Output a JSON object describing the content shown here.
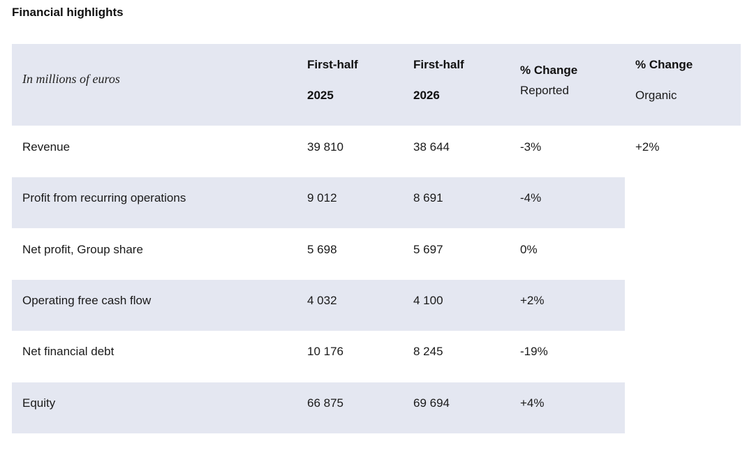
{
  "title": "Financial highlights",
  "table": {
    "unit_label": "In millions of euros",
    "columns": [
      {
        "line1": "First-half",
        "line2": "2025"
      },
      {
        "line1": "First-half",
        "line2": "2026"
      },
      {
        "line1": "% Change",
        "line2": "Reported"
      },
      {
        "line1": "% Change",
        "line2": "Organic"
      }
    ],
    "rows": [
      {
        "label": "Revenue",
        "h1_2025": "39 810",
        "h1_2026": "38 644",
        "change_reported": "-3%",
        "change_organic": "+2%"
      },
      {
        "label": "Profit from recurring operations",
        "h1_2025": "9 012",
        "h1_2026": "8 691",
        "change_reported": "-4%",
        "change_organic": ""
      },
      {
        "label": "Net profit, Group share",
        "h1_2025": "5 698",
        "h1_2026": "5 697",
        "change_reported": "0%",
        "change_organic": ""
      },
      {
        "label": "Operating free cash flow",
        "h1_2025": "4 032",
        "h1_2026": "4 100",
        "change_reported": "+2%",
        "change_organic": ""
      },
      {
        "label": "Net financial debt",
        "h1_2025": "10 176",
        "h1_2026": "8 245",
        "change_reported": "-19%",
        "change_organic": ""
      },
      {
        "label": "Equity",
        "h1_2025": "66 875",
        "h1_2026": "69 694",
        "change_reported": "+4%",
        "change_organic": ""
      }
    ]
  }
}
